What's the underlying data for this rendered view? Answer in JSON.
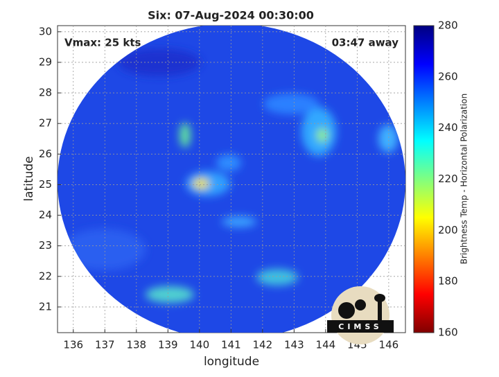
{
  "title": "Six: 07-Aug-2024 00:30:00",
  "annotations": {
    "left": "Vmax: 25 kts",
    "right": "03:47 away"
  },
  "x_axis": {
    "label": "longitude",
    "lim": [
      135.5,
      146.53
    ],
    "ticks": [
      136,
      137,
      138,
      139,
      140,
      141,
      142,
      143,
      144,
      145,
      146
    ]
  },
  "y_axis": {
    "label": "latitude",
    "lim": [
      20.16,
      30.2
    ],
    "ticks": [
      21,
      22,
      23,
      24,
      25,
      26,
      27,
      28,
      29,
      30
    ]
  },
  "grid": true,
  "colorbar": {
    "label": "Brightness Temp - Horizontal Polarization",
    "lim": [
      160,
      280
    ],
    "ticks": [
      160,
      180,
      200,
      220,
      240,
      260,
      280
    ],
    "colors": [
      "#800000",
      "#ff0000",
      "#ff8000",
      "#ffff00",
      "#80ff80",
      "#00ffff",
      "#0080ff",
      "#0000ff",
      "#000080"
    ]
  },
  "logo": "CIMSS"
}
